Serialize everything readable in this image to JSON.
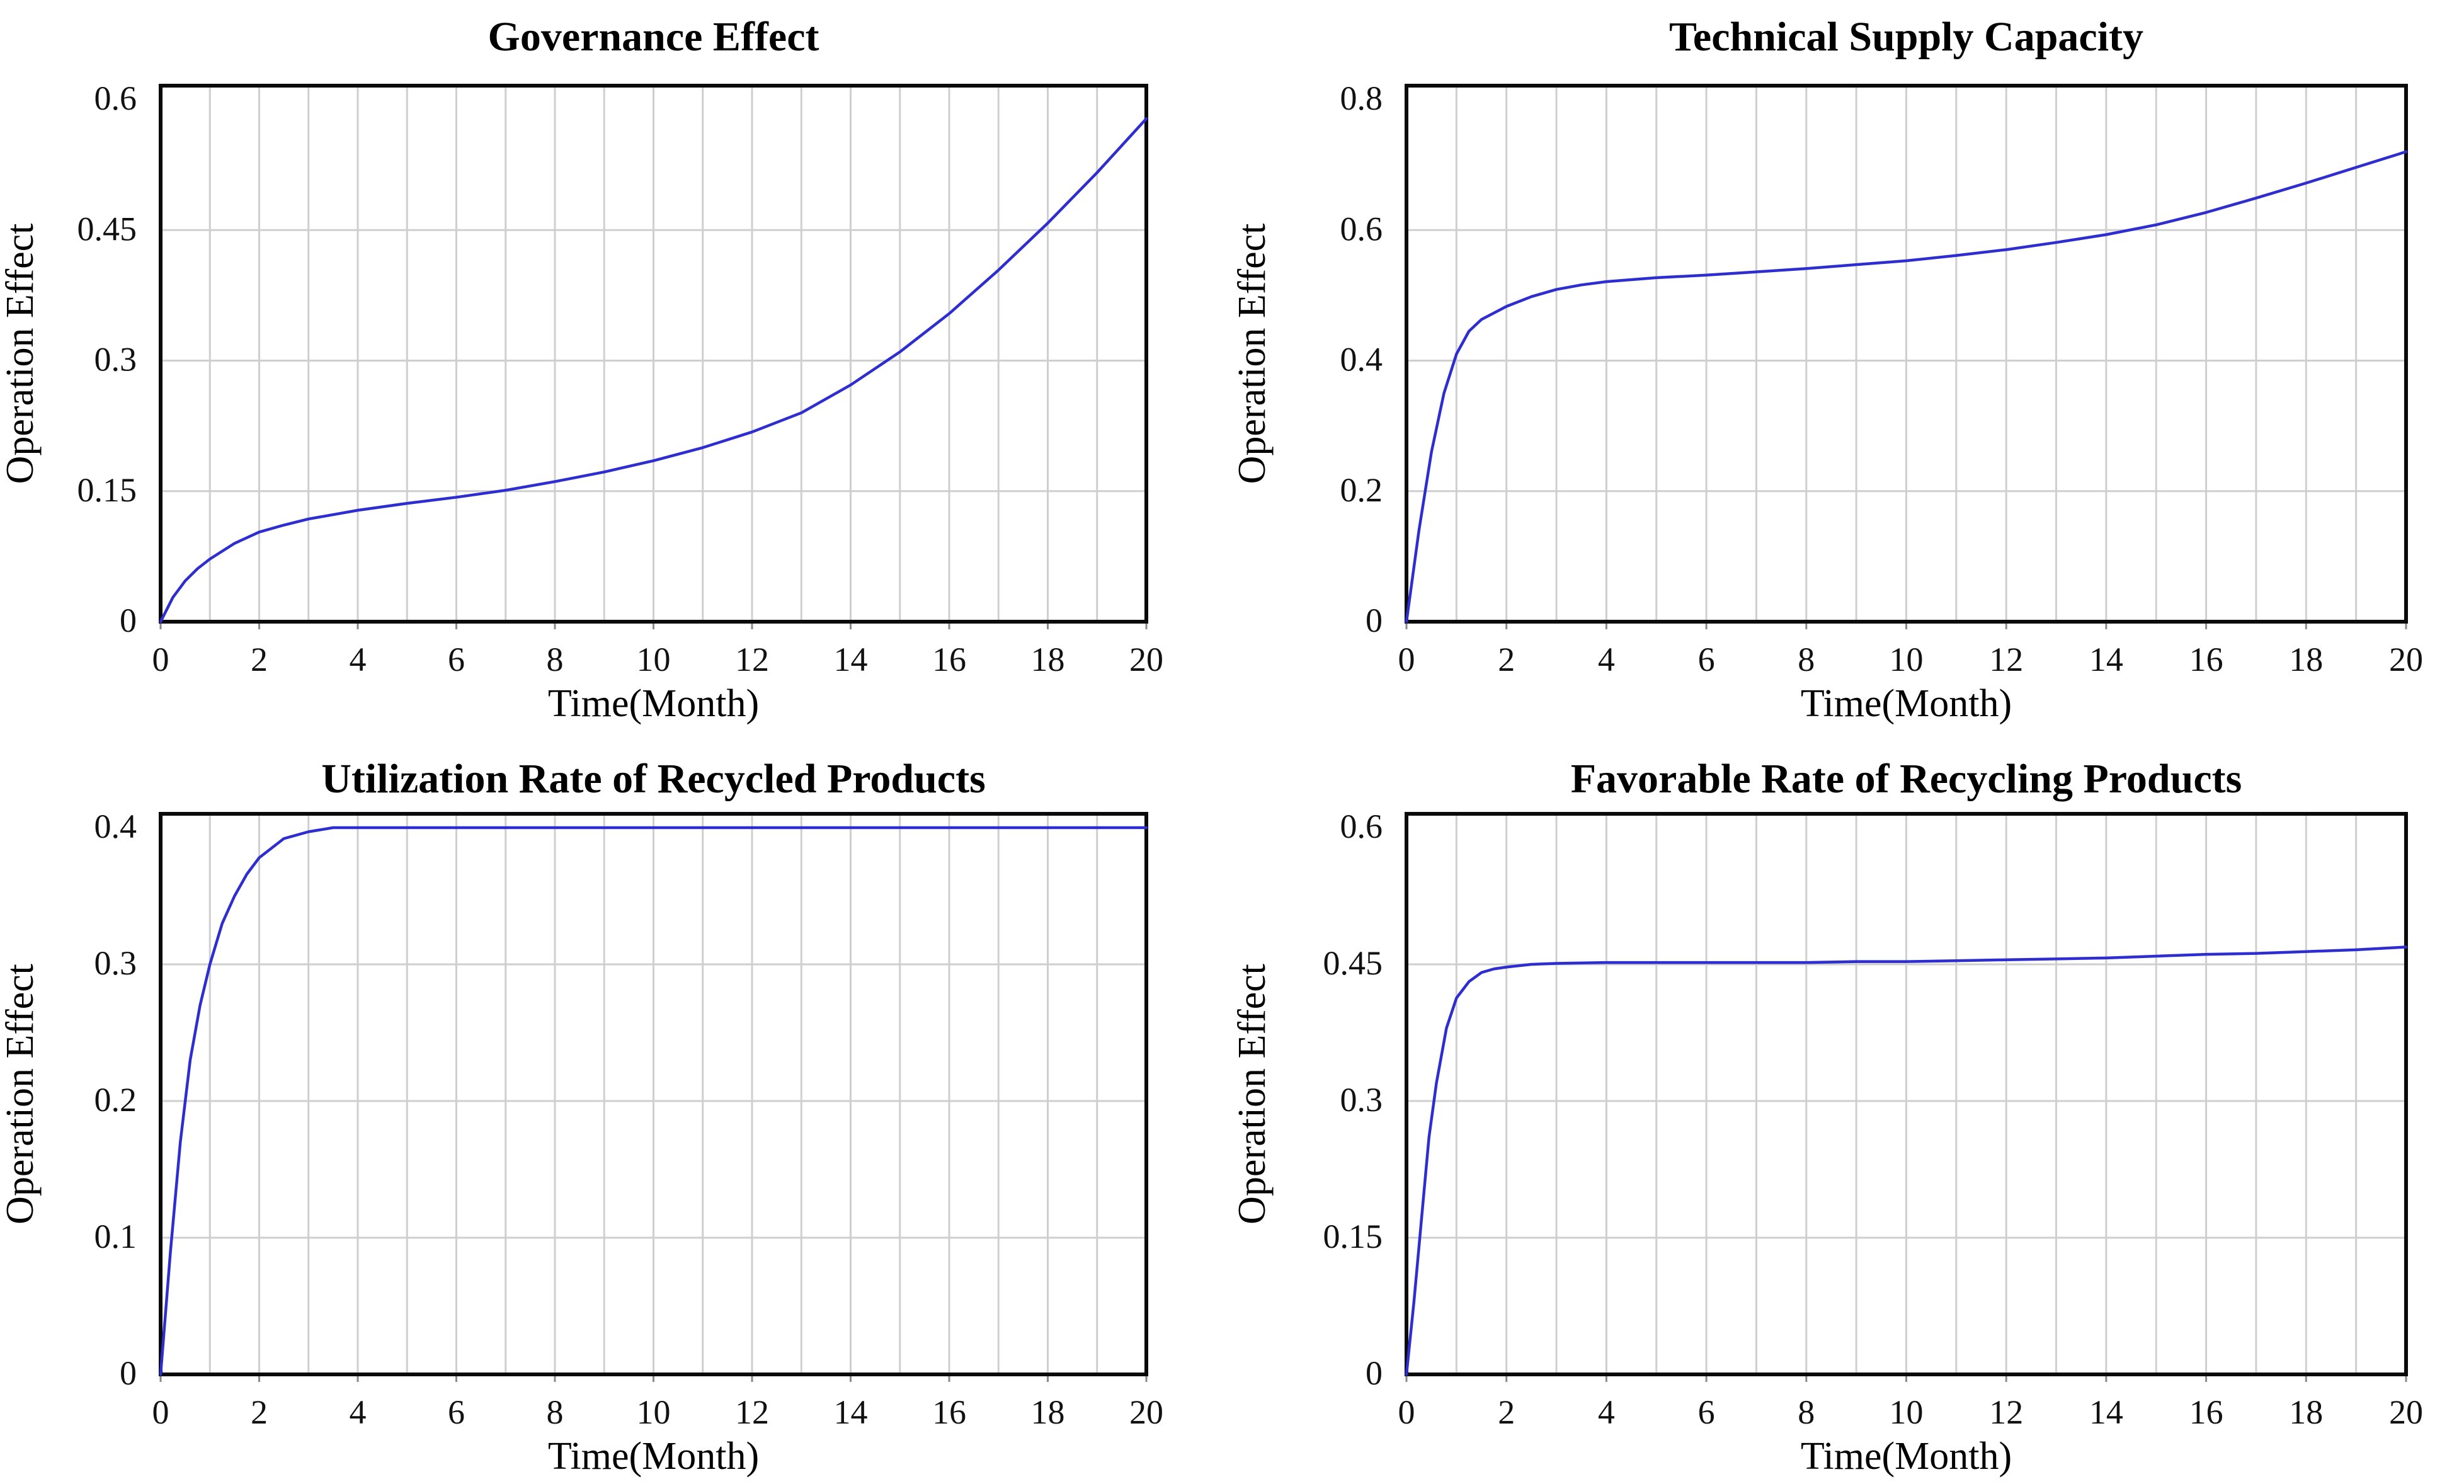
{
  "page": {
    "background_color": "#ffffff",
    "text_color": "#000000"
  },
  "chart_data": [
    {
      "type": "line",
      "title": "Governance Effect",
      "xlabel": "Time(Month)",
      "ylabel": "Operation Effect",
      "xlim": [
        0,
        20
      ],
      "ylim": [
        0,
        0.6
      ],
      "x_ticks": [
        "0",
        "2",
        "4",
        "6",
        "8",
        "10",
        "12",
        "14",
        "16",
        "18",
        "20"
      ],
      "y_ticks": [
        "0",
        "0.15",
        "0.3",
        "0.45",
        "0.6"
      ],
      "x_grid_step": 1,
      "grid": true,
      "legend": false,
      "line_color": "#2e2ed0",
      "series": [
        {
          "name": "Operation Effect",
          "points": [
            [
              0,
              0
            ],
            [
              0.25,
              0.028
            ],
            [
              0.5,
              0.047
            ],
            [
              0.75,
              0.061
            ],
            [
              1,
              0.072
            ],
            [
              1.5,
              0.09
            ],
            [
              2,
              0.103
            ],
            [
              2.5,
              0.111
            ],
            [
              3,
              0.118
            ],
            [
              3.5,
              0.123
            ],
            [
              4,
              0.128
            ],
            [
              5,
              0.136
            ],
            [
              6,
              0.143
            ],
            [
              7,
              0.151
            ],
            [
              8,
              0.161
            ],
            [
              9,
              0.172
            ],
            [
              10,
              0.185
            ],
            [
              11,
              0.2
            ],
            [
              12,
              0.218
            ],
            [
              13,
              0.24
            ],
            [
              14,
              0.272
            ],
            [
              15,
              0.31
            ],
            [
              16,
              0.354
            ],
            [
              17,
              0.404
            ],
            [
              18,
              0.458
            ],
            [
              19,
              0.516
            ],
            [
              20,
              0.578
            ]
          ]
        }
      ]
    },
    {
      "type": "line",
      "title": "Technical Supply Capacity",
      "xlabel": "Time(Month)",
      "ylabel": "Operation Effect",
      "xlim": [
        0,
        20
      ],
      "ylim": [
        0,
        0.8
      ],
      "x_ticks": [
        "0",
        "2",
        "4",
        "6",
        "8",
        "10",
        "12",
        "14",
        "16",
        "18",
        "20"
      ],
      "y_ticks": [
        "0",
        "0.2",
        "0.4",
        "0.6",
        "0.8"
      ],
      "x_grid_step": 1,
      "grid": true,
      "legend": false,
      "line_color": "#2e2ed0",
      "series": [
        {
          "name": "Operation Effect",
          "points": [
            [
              0,
              0
            ],
            [
              0.25,
              0.14
            ],
            [
              0.5,
              0.26
            ],
            [
              0.75,
              0.35
            ],
            [
              1,
              0.41
            ],
            [
              1.25,
              0.445
            ],
            [
              1.5,
              0.463
            ],
            [
              2,
              0.483
            ],
            [
              2.5,
              0.498
            ],
            [
              3,
              0.509
            ],
            [
              3.5,
              0.516
            ],
            [
              4,
              0.521
            ],
            [
              5,
              0.527
            ],
            [
              6,
              0.531
            ],
            [
              7,
              0.536
            ],
            [
              8,
              0.541
            ],
            [
              9,
              0.547
            ],
            [
              10,
              0.553
            ],
            [
              11,
              0.561
            ],
            [
              12,
              0.57
            ],
            [
              13,
              0.581
            ],
            [
              14,
              0.593
            ],
            [
              15,
              0.608
            ],
            [
              16,
              0.627
            ],
            [
              17,
              0.649
            ],
            [
              18,
              0.672
            ],
            [
              19,
              0.696
            ],
            [
              20,
              0.72
            ]
          ]
        }
      ]
    },
    {
      "type": "line",
      "title": "Utilization Rate of Recycled Products",
      "xlabel": "Time(Month)",
      "ylabel": "Operation Effect",
      "xlim": [
        0,
        20
      ],
      "ylim": [
        0,
        0.4
      ],
      "x_ticks": [
        "0",
        "2",
        "4",
        "6",
        "8",
        "10",
        "12",
        "14",
        "16",
        "18",
        "20"
      ],
      "y_ticks": [
        "0",
        "0.1",
        "0.2",
        "0.3",
        "0.4"
      ],
      "x_grid_step": 1,
      "grid": true,
      "legend": false,
      "line_color": "#2e2ed0",
      "series": [
        {
          "name": "Operation Effect",
          "points": [
            [
              0,
              0
            ],
            [
              0.2,
              0.09
            ],
            [
              0.4,
              0.17
            ],
            [
              0.6,
              0.23
            ],
            [
              0.8,
              0.27
            ],
            [
              1,
              0.3
            ],
            [
              1.25,
              0.33
            ],
            [
              1.5,
              0.35
            ],
            [
              1.75,
              0.366
            ],
            [
              2,
              0.378
            ],
            [
              2.5,
              0.392
            ],
            [
              3,
              0.397
            ],
            [
              3.5,
              0.4
            ],
            [
              4,
              0.4
            ],
            [
              6,
              0.4
            ],
            [
              8,
              0.4
            ],
            [
              10,
              0.4
            ],
            [
              12,
              0.4
            ],
            [
              14,
              0.4
            ],
            [
              16,
              0.4
            ],
            [
              18,
              0.4
            ],
            [
              20,
              0.4
            ]
          ]
        }
      ]
    },
    {
      "type": "line",
      "title": "Favorable Rate of Recycling Products",
      "xlabel": "Time(Month)",
      "ylabel": "Operation Effect",
      "xlim": [
        0,
        20
      ],
      "ylim": [
        0,
        0.6
      ],
      "x_ticks": [
        "0",
        "2",
        "4",
        "6",
        "8",
        "10",
        "12",
        "14",
        "16",
        "18",
        "20"
      ],
      "y_ticks": [
        "0",
        "0.15",
        "0.3",
        "0.45",
        "0.6"
      ],
      "x_grid_step": 1,
      "grid": true,
      "legend": false,
      "line_color": "#2e2ed0",
      "series": [
        {
          "name": "Operation Effect",
          "points": [
            [
              0,
              0
            ],
            [
              0.15,
              0.08
            ],
            [
              0.3,
              0.17
            ],
            [
              0.45,
              0.26
            ],
            [
              0.6,
              0.32
            ],
            [
              0.8,
              0.38
            ],
            [
              1,
              0.413
            ],
            [
              1.25,
              0.431
            ],
            [
              1.5,
              0.441
            ],
            [
              1.75,
              0.445
            ],
            [
              2,
              0.447
            ],
            [
              2.5,
              0.45
            ],
            [
              3,
              0.451
            ],
            [
              4,
              0.452
            ],
            [
              5,
              0.452
            ],
            [
              6,
              0.452
            ],
            [
              7,
              0.452
            ],
            [
              8,
              0.452
            ],
            [
              9,
              0.453
            ],
            [
              10,
              0.453
            ],
            [
              11,
              0.454
            ],
            [
              12,
              0.455
            ],
            [
              13,
              0.456
            ],
            [
              14,
              0.457
            ],
            [
              15,
              0.459
            ],
            [
              16,
              0.461
            ],
            [
              17,
              0.462
            ],
            [
              18,
              0.464
            ],
            [
              19,
              0.466
            ],
            [
              20,
              0.469
            ]
          ]
        }
      ]
    }
  ]
}
